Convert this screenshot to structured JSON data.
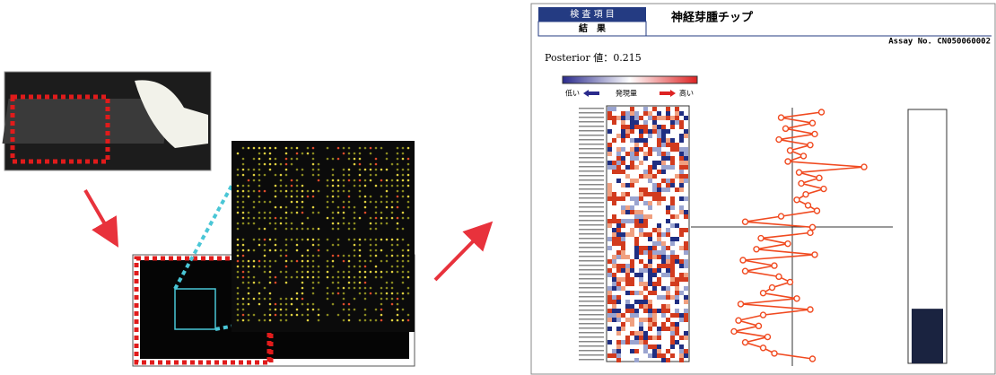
{
  "report": {
    "header_tab": "検 査 項 目",
    "result_tab": "結　果",
    "chip_name": "神経芽腫チップ",
    "assay_no": "Assay No. CN050060002",
    "posterior": {
      "label": "Posterior 値：",
      "value": 0.215
    },
    "legend": {
      "low": "低い",
      "middle": "発現量",
      "high": "高い"
    },
    "profile": {
      "xlim": [
        -4,
        4
      ],
      "values": [
        1.3,
        -0.5,
        0.9,
        -0.3,
        1.0,
        -0.6,
        0.8,
        -0.1,
        0.5,
        -0.2,
        3.2,
        0.3,
        1.2,
        0.4,
        1.4,
        0.6,
        0.2,
        0.7,
        1.1,
        -0.5,
        -2.1,
        0.9,
        0.8,
        -1.4,
        -0.2,
        -1.6,
        1.0,
        -2.2,
        -0.8,
        -2.1,
        -0.6,
        -0.1,
        -0.9,
        -1.3,
        0.2,
        -2.3,
        0.8,
        -1.3,
        -2.4,
        -1.5,
        -2.6,
        -1.1,
        -2.1,
        -1.3,
        -0.8,
        0.9
      ]
    },
    "bar_ylim": [
      0,
      1
    ]
  }
}
